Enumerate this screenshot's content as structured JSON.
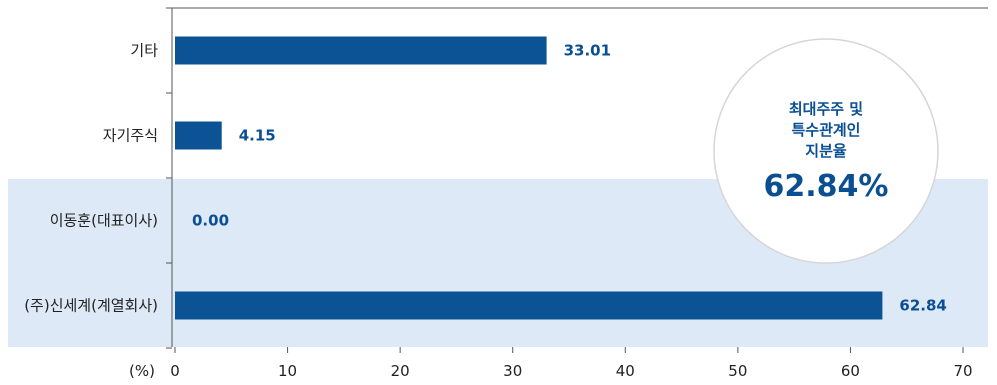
{
  "chart_data": {
    "type": "bar",
    "orientation": "horizontal",
    "categories": [
      "기타",
      "자기주식",
      "이동훈(대표이사)",
      "(주)신세계(계열회사)"
    ],
    "values": [
      33.01,
      4.15,
      0.0,
      62.84
    ],
    "value_labels": [
      "33.01",
      "4.15",
      "0.00",
      "62.84"
    ],
    "highlighted_categories": [
      "이동훈(대표이사)",
      "(주)신세계(계열회사)"
    ],
    "xlim": [
      0,
      70
    ],
    "x_ticks": [
      "0",
      "10",
      "20",
      "30",
      "40",
      "50",
      "60",
      "70"
    ],
    "unit_label": "(%)",
    "grid": false,
    "callout": {
      "title_lines": [
        "최대주주 및",
        "특수관계인",
        "지분율"
      ],
      "value": "62.84%"
    },
    "colors": {
      "bar": "#0b5394",
      "value_text": "#0b4f93",
      "highlight_band": "#dde9f6",
      "axis": "#555555",
      "callout_border": "#d6d6d6"
    }
  }
}
